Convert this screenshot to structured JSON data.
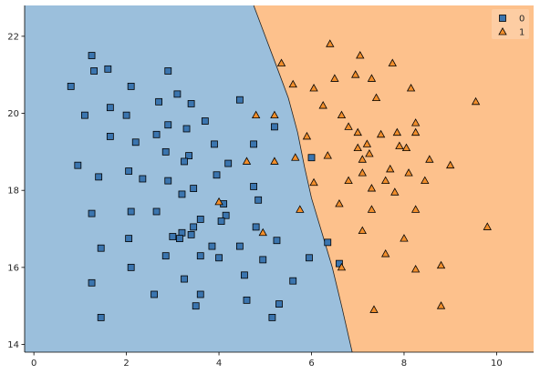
{
  "chart_data": {
    "type": "scatter",
    "title": "",
    "xlabel": "",
    "ylabel": "",
    "xlim": [
      -0.2,
      10.8
    ],
    "ylim": [
      13.8,
      22.8
    ],
    "xticks": [
      0,
      2,
      4,
      6,
      8,
      10
    ],
    "yticks": [
      14,
      16,
      18,
      20,
      22
    ],
    "grid": false,
    "legend_position": "top-right",
    "decision_regions": {
      "colors": {
        "0": "#9bbfdc",
        "1": "#fdc18c"
      },
      "boundary": [
        [
          4.75,
          22.8
        ],
        [
          5.0,
          22.0
        ],
        [
          5.25,
          21.2
        ],
        [
          5.5,
          20.4
        ],
        [
          5.7,
          19.5
        ],
        [
          5.85,
          18.6
        ],
        [
          6.0,
          17.8
        ],
        [
          6.25,
          16.8
        ],
        [
          6.45,
          16.0
        ],
        [
          6.65,
          15.0
        ],
        [
          6.88,
          13.8
        ]
      ]
    },
    "series": [
      {
        "name": "0",
        "marker": "square",
        "color": "#3b75af",
        "points": [
          [
            1.25,
            21.5
          ],
          [
            1.3,
            21.1
          ],
          [
            1.6,
            21.15
          ],
          [
            2.9,
            21.1
          ],
          [
            0.8,
            20.7
          ],
          [
            2.1,
            20.7
          ],
          [
            3.1,
            20.5
          ],
          [
            2.7,
            20.3
          ],
          [
            4.45,
            20.35
          ],
          [
            1.1,
            19.95
          ],
          [
            1.65,
            20.15
          ],
          [
            2.0,
            19.95
          ],
          [
            3.4,
            20.25
          ],
          [
            2.9,
            19.7
          ],
          [
            3.7,
            19.8
          ],
          [
            5.2,
            19.65
          ],
          [
            1.65,
            19.4
          ],
          [
            2.65,
            19.45
          ],
          [
            3.3,
            19.6
          ],
          [
            2.2,
            19.25
          ],
          [
            3.9,
            19.2
          ],
          [
            4.75,
            19.2
          ],
          [
            2.85,
            19.0
          ],
          [
            3.35,
            18.9
          ],
          [
            3.25,
            18.75
          ],
          [
            4.2,
            18.7
          ],
          [
            6.0,
            18.85
          ],
          [
            0.95,
            18.65
          ],
          [
            2.05,
            18.5
          ],
          [
            3.95,
            18.4
          ],
          [
            1.4,
            18.35
          ],
          [
            2.35,
            18.3
          ],
          [
            2.9,
            18.25
          ],
          [
            4.75,
            18.1
          ],
          [
            3.45,
            18.05
          ],
          [
            3.2,
            17.9
          ],
          [
            4.85,
            17.75
          ],
          [
            4.1,
            17.65
          ],
          [
            2.65,
            17.45
          ],
          [
            1.25,
            17.4
          ],
          [
            2.1,
            17.45
          ],
          [
            4.15,
            17.35
          ],
          [
            3.6,
            17.25
          ],
          [
            4.05,
            17.2
          ],
          [
            3.45,
            17.05
          ],
          [
            4.8,
            17.05
          ],
          [
            3.2,
            16.9
          ],
          [
            3.4,
            16.85
          ],
          [
            3.0,
            16.8
          ],
          [
            3.15,
            16.75
          ],
          [
            5.25,
            16.7
          ],
          [
            2.05,
            16.75
          ],
          [
            3.85,
            16.55
          ],
          [
            4.45,
            16.55
          ],
          [
            1.45,
            16.5
          ],
          [
            6.35,
            16.65
          ],
          [
            3.6,
            16.3
          ],
          [
            2.85,
            16.3
          ],
          [
            4.0,
            16.25
          ],
          [
            5.95,
            16.25
          ],
          [
            4.95,
            16.2
          ],
          [
            6.6,
            16.1
          ],
          [
            2.1,
            16.0
          ],
          [
            4.55,
            15.8
          ],
          [
            3.25,
            15.7
          ],
          [
            5.6,
            15.65
          ],
          [
            1.25,
            15.6
          ],
          [
            2.6,
            15.3
          ],
          [
            3.6,
            15.3
          ],
          [
            4.6,
            15.15
          ],
          [
            5.3,
            15.05
          ],
          [
            3.5,
            15.0
          ],
          [
            1.45,
            14.7
          ],
          [
            5.15,
            14.7
          ]
        ]
      },
      {
        "name": "1",
        "marker": "triangle",
        "color": "#f28e2b",
        "points": [
          [
            6.4,
            21.8
          ],
          [
            7.05,
            21.5
          ],
          [
            7.75,
            21.3
          ],
          [
            5.35,
            21.3
          ],
          [
            6.95,
            21.0
          ],
          [
            6.5,
            20.9
          ],
          [
            7.3,
            20.9
          ],
          [
            5.6,
            20.75
          ],
          [
            6.05,
            20.65
          ],
          [
            8.15,
            20.65
          ],
          [
            7.4,
            20.4
          ],
          [
            9.55,
            20.3
          ],
          [
            6.25,
            20.2
          ],
          [
            4.8,
            19.95
          ],
          [
            5.2,
            19.95
          ],
          [
            6.65,
            19.95
          ],
          [
            8.25,
            19.75
          ],
          [
            6.8,
            19.65
          ],
          [
            8.25,
            19.5
          ],
          [
            7.0,
            19.5
          ],
          [
            7.85,
            19.5
          ],
          [
            7.5,
            19.45
          ],
          [
            5.9,
            19.4
          ],
          [
            7.2,
            19.2
          ],
          [
            7.9,
            19.15
          ],
          [
            8.05,
            19.1
          ],
          [
            7.0,
            19.1
          ],
          [
            7.25,
            18.95
          ],
          [
            6.35,
            18.9
          ],
          [
            5.65,
            18.85
          ],
          [
            7.1,
            18.8
          ],
          [
            8.55,
            18.8
          ],
          [
            4.6,
            18.75
          ],
          [
            5.2,
            18.75
          ],
          [
            9.0,
            18.65
          ],
          [
            7.7,
            18.55
          ],
          [
            7.1,
            18.45
          ],
          [
            8.1,
            18.45
          ],
          [
            6.8,
            18.25
          ],
          [
            7.6,
            18.25
          ],
          [
            8.45,
            18.25
          ],
          [
            6.05,
            18.2
          ],
          [
            7.3,
            18.05
          ],
          [
            7.8,
            17.95
          ],
          [
            4.0,
            17.7
          ],
          [
            6.6,
            17.65
          ],
          [
            5.75,
            17.5
          ],
          [
            7.3,
            17.5
          ],
          [
            8.25,
            17.5
          ],
          [
            9.8,
            17.05
          ],
          [
            7.1,
            16.95
          ],
          [
            4.95,
            16.9
          ],
          [
            8.0,
            16.75
          ],
          [
            7.6,
            16.35
          ],
          [
            6.65,
            16.0
          ],
          [
            8.25,
            15.95
          ],
          [
            8.8,
            16.05
          ],
          [
            8.8,
            15.0
          ],
          [
            7.35,
            14.9
          ]
        ]
      }
    ],
    "legend": [
      {
        "label": "0",
        "marker": "square",
        "color": "#3b75af"
      },
      {
        "label": "1",
        "marker": "triangle",
        "color": "#f28e2b"
      }
    ]
  }
}
